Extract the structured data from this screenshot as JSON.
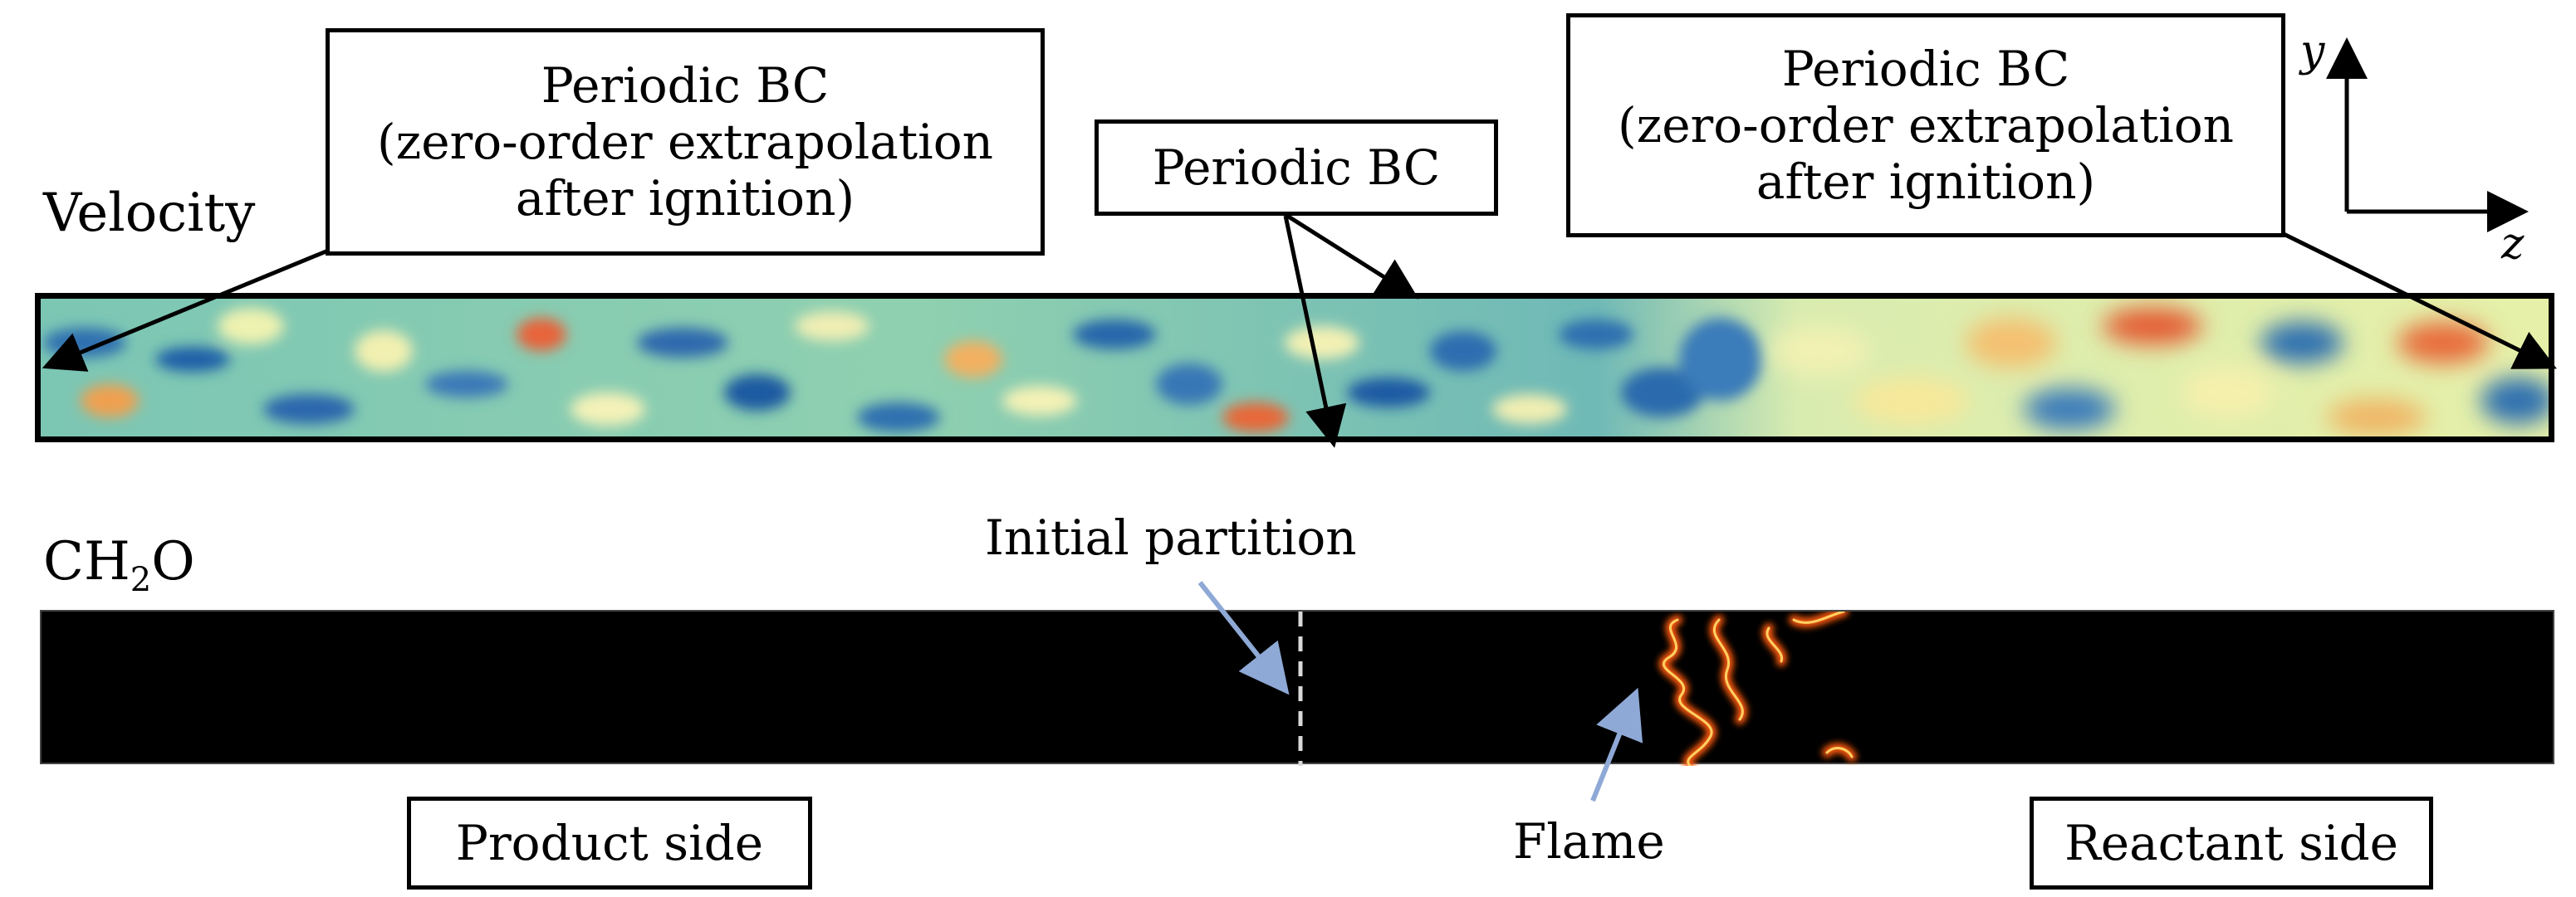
{
  "panels": {
    "velocity_label": "Velocity",
    "ch2o_label_main": "CH",
    "ch2o_label_sub": "2",
    "ch2o_label_tail": "O"
  },
  "annotations": {
    "left_bc": [
      "Periodic BC",
      "(zero-order extrapolation",
      "after ignition)"
    ],
    "middle_bc": "Periodic BC",
    "right_bc": [
      "Periodic BC",
      "(zero-order extrapolation",
      "after ignition)"
    ],
    "initial_partition": "Initial partition",
    "flame": "Flame",
    "product_side": "Product side",
    "reactant_side": "Reactant side"
  },
  "axes": {
    "y": "y",
    "z": "z"
  },
  "colors": {
    "velocity_low": "#2f6fb0",
    "velocity_mid": "#b8e3b0",
    "velocity_high": "#e0552a",
    "flame": "#ff7a1a",
    "partition_arrow": "#8fa9d6"
  }
}
